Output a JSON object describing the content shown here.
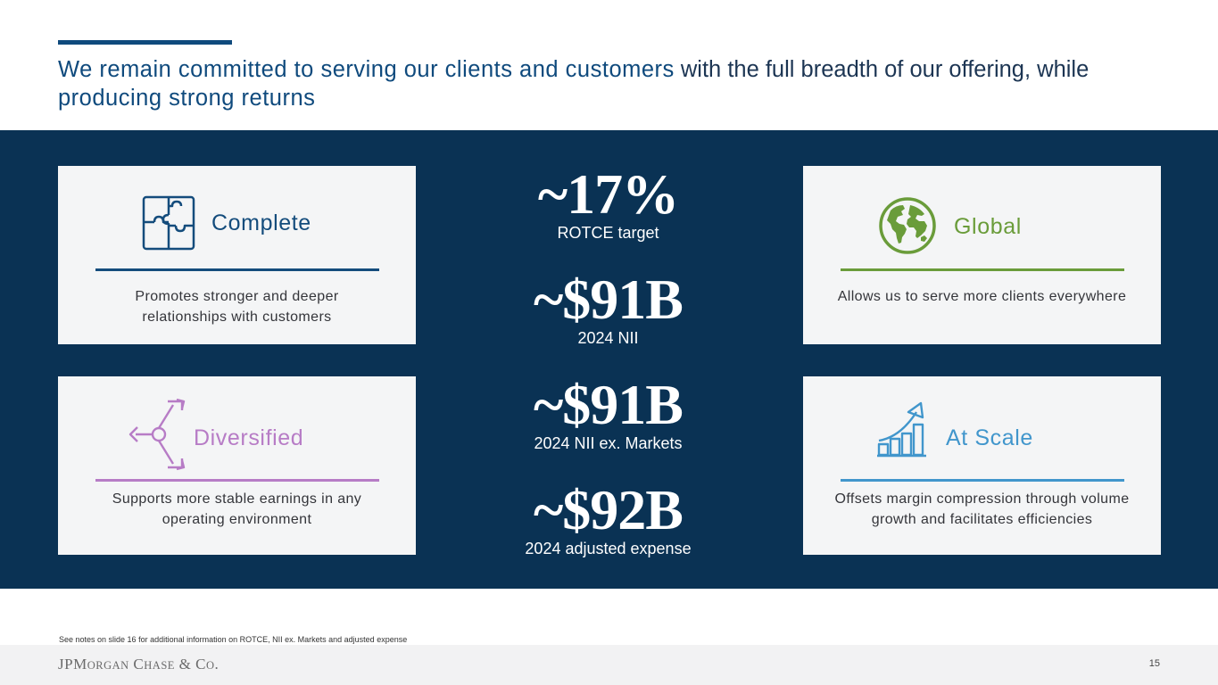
{
  "header": {
    "title_accent": "We remain committed to serving our clients and customers",
    "title_rest": " with the full breadth of our offering, while",
    "title_tail": "producing strong returns"
  },
  "colors": {
    "navy": "#0a3254",
    "title_blue": "#0f4a7d",
    "complete": "#144c7c",
    "global": "#6a9c3a",
    "diversified": "#b77cc6",
    "at_scale": "#4196cc",
    "card_bg": "#f4f5f6"
  },
  "cards": {
    "complete": {
      "label": "Complete",
      "icon": "puzzle-icon",
      "description_line1": "Promotes stronger and deeper",
      "description_line2": "relationships with customers"
    },
    "global": {
      "label": "Global",
      "icon": "globe-icon",
      "description_line1": "Allows us to serve more clients everywhere"
    },
    "diversified": {
      "label": "Diversified",
      "icon": "branching-arrows-icon",
      "description_line1": "Supports more stable earnings in any",
      "description_line2": "operating environment"
    },
    "at_scale": {
      "label": "At Scale",
      "icon": "growth-chart-icon",
      "description_line1": "Offsets margin compression through volume",
      "description_line2": "growth and facilitates efficiencies"
    }
  },
  "metrics": [
    {
      "value": "~17%",
      "label": "ROTCE target"
    },
    {
      "value": "~$91B",
      "label": "2024 NII"
    },
    {
      "value": "~$91B",
      "label": "2024 NII ex. Markets"
    },
    {
      "value": "~$92B",
      "label": "2024 adjusted expense"
    }
  ],
  "footer": {
    "note": "See notes on slide 16 for additional information on ROTCE, NII ex. Markets and adjusted expense",
    "logo": "JPMorgan Chase & Co.",
    "page_number": "15"
  }
}
